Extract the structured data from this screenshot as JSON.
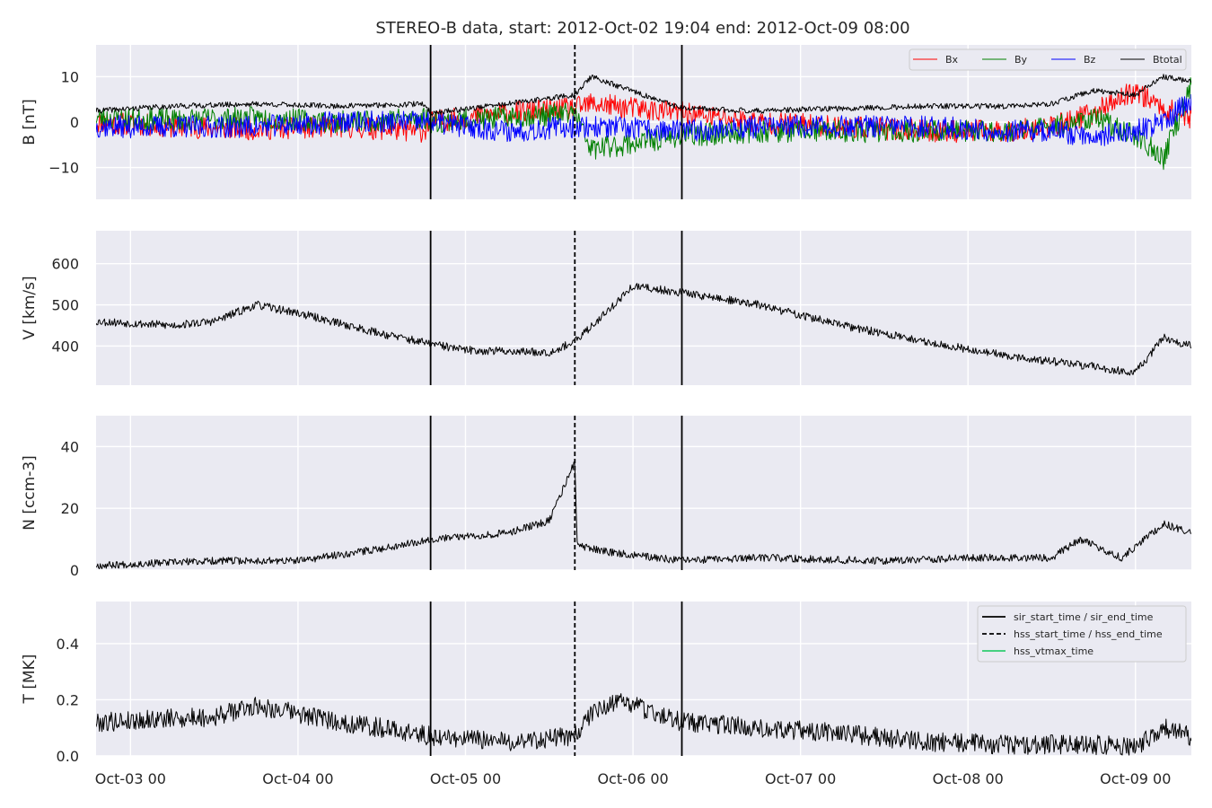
{
  "chart_data": {
    "title": "STEREO-B data, start: 2012-Oct-02 19:04  end: 2012-Oct-09 08:00",
    "type": "line",
    "x_range": [
      "2012-10-02 19:04",
      "2012-10-09 08:00"
    ],
    "x_tick_labels": [
      "Oct-03 00",
      "Oct-04 00",
      "Oct-05 00",
      "Oct-06 00",
      "Oct-07 00",
      "Oct-08 00",
      "Oct-09 00"
    ],
    "x_ticks": [
      "2012-10-03 00:00",
      "2012-10-04 00:00",
      "2012-10-05 00:00",
      "2012-10-06 00:00",
      "2012-10-07 00:00",
      "2012-10-08 00:00",
      "2012-10-09 00:00"
    ],
    "grid": true,
    "background_color": "#eaeaf2",
    "event_lines": [
      {
        "name": "sir_start_time",
        "time": "2012-10-04 19:00",
        "style": "solid",
        "color": "#000000"
      },
      {
        "name": "hss_start_time",
        "time": "2012-10-05 15:40",
        "style": "dashed",
        "color": "#000000"
      },
      {
        "name": "sir_end_time",
        "time": "2012-10-06 07:00",
        "style": "solid",
        "color": "#000000"
      }
    ],
    "panels": [
      {
        "id": "b",
        "ylabel": "B [nT]",
        "ylim": [
          -17,
          17
        ],
        "yticks": [
          -10,
          0,
          10
        ],
        "ytick_labels": [
          "−10",
          "0",
          "10"
        ],
        "legend": "top-right",
        "series": [
          {
            "name": "Bx",
            "color": "#ff0000",
            "times": [
              "2012-10-02 19:04",
              "2012-10-03 06:00",
              "2012-10-03 18:00",
              "2012-10-04 06:00",
              "2012-10-04 18:00",
              "2012-10-04 19:00",
              "2012-10-05 06:00",
              "2012-10-05 15:40",
              "2012-10-05 18:00",
              "2012-10-06 07:00",
              "2012-10-06 18:00",
              "2012-10-07 06:00",
              "2012-10-07 18:00",
              "2012-10-08 06:00",
              "2012-10-08 12:00",
              "2012-10-08 18:00",
              "2012-10-09 00:00",
              "2012-10-09 04:00",
              "2012-10-09 08:00"
            ],
            "values": [
              0,
              -1,
              -1.5,
              -1,
              -2,
              0,
              2,
              3,
              4,
              2,
              0,
              -1,
              -2,
              -2,
              -1,
              2,
              7,
              3,
              1
            ],
            "noise": 2.5
          },
          {
            "name": "By",
            "color": "#008000",
            "times": [
              "2012-10-02 19:04",
              "2012-10-03 06:00",
              "2012-10-03 18:00",
              "2012-10-04 06:00",
              "2012-10-04 18:00",
              "2012-10-04 19:00",
              "2012-10-05 06:00",
              "2012-10-05 15:40",
              "2012-10-05 18:00",
              "2012-10-06 07:00",
              "2012-10-06 18:00",
              "2012-10-07 06:00",
              "2012-10-07 18:00",
              "2012-10-08 06:00",
              "2012-10-08 12:00",
              "2012-10-08 18:00",
              "2012-10-09 00:00",
              "2012-10-09 04:00",
              "2012-10-09 08:00"
            ],
            "values": [
              1,
              0.5,
              1,
              0,
              1,
              0,
              1,
              2,
              -6,
              -3,
              -2,
              -2,
              -2,
              -2,
              -1,
              1,
              -3,
              -8,
              8
            ],
            "noise": 2.5
          },
          {
            "name": "Bz",
            "color": "#0000ff",
            "times": [
              "2012-10-02 19:04",
              "2012-10-03 06:00",
              "2012-10-03 18:00",
              "2012-10-04 06:00",
              "2012-10-04 18:00",
              "2012-10-04 19:00",
              "2012-10-05 06:00",
              "2012-10-05 15:40",
              "2012-10-05 18:00",
              "2012-10-06 07:00",
              "2012-10-06 18:00",
              "2012-10-07 06:00",
              "2012-10-07 18:00",
              "2012-10-08 06:00",
              "2012-10-08 12:00",
              "2012-10-08 18:00",
              "2012-10-09 00:00",
              "2012-10-09 04:00",
              "2012-10-09 08:00"
            ],
            "values": [
              -1,
              -1,
              -1,
              0,
              0,
              0,
              -2,
              -1,
              -1,
              -2,
              -1,
              -1,
              -1,
              -2,
              -2,
              -3,
              -2,
              0,
              5
            ],
            "noise": 2.5
          },
          {
            "name": "Btotal",
            "color": "#000000",
            "times": [
              "2012-10-02 19:04",
              "2012-10-03 06:00",
              "2012-10-03 18:00",
              "2012-10-04 06:00",
              "2012-10-04 18:00",
              "2012-10-04 19:00",
              "2012-10-05 06:00",
              "2012-10-05 15:40",
              "2012-10-05 18:00",
              "2012-10-06 07:00",
              "2012-10-06 18:00",
              "2012-10-07 06:00",
              "2012-10-07 18:00",
              "2012-10-08 06:00",
              "2012-10-08 12:00",
              "2012-10-08 18:00",
              "2012-10-09 00:00",
              "2012-10-09 04:00",
              "2012-10-09 08:00"
            ],
            "values": [
              2.5,
              3.5,
              4,
              3.5,
              4,
              2,
              4,
              6,
              10,
              3,
              2.5,
              3,
              3.5,
              3.5,
              4,
              7,
              6,
              10,
              9
            ],
            "noise": 0.6
          }
        ]
      },
      {
        "id": "v",
        "ylabel": "V [km/s]",
        "ylim": [
          305,
          680
        ],
        "yticks": [
          400,
          500,
          600
        ],
        "ytick_labels": [
          "400",
          "500",
          "600"
        ],
        "series": [
          {
            "name": "V",
            "color": "#000000",
            "times": [
              "2012-10-02 19:04",
              "2012-10-03 06:00",
              "2012-10-03 12:00",
              "2012-10-03 18:00",
              "2012-10-04 00:00",
              "2012-10-04 12:00",
              "2012-10-04 19:00",
              "2012-10-05 00:00",
              "2012-10-05 12:00",
              "2012-10-05 15:40",
              "2012-10-05 20:00",
              "2012-10-06 00:00",
              "2012-10-06 07:00",
              "2012-10-06 18:00",
              "2012-10-07 06:00",
              "2012-10-07 12:00",
              "2012-10-07 18:00",
              "2012-10-08 06:00",
              "2012-10-08 18:00",
              "2012-10-09 00:00",
              "2012-10-09 04:00",
              "2012-10-09 08:00"
            ],
            "values": [
              460,
              450,
              460,
              500,
              480,
              430,
              405,
              390,
              385,
              410,
              480,
              545,
              530,
              500,
              450,
              430,
              410,
              375,
              350,
              335,
              420,
              400
            ],
            "noise": 10
          }
        ]
      },
      {
        "id": "n",
        "ylabel": "N [ccm-3]",
        "ylim": [
          0,
          50
        ],
        "yticks": [
          0,
          20,
          40
        ],
        "ytick_labels": [
          "0",
          "20",
          "40"
        ],
        "series": [
          {
            "name": "N",
            "color": "#000000",
            "times": [
              "2012-10-02 19:04",
              "2012-10-03 12:00",
              "2012-10-04 00:00",
              "2012-10-04 12:00",
              "2012-10-04 19:00",
              "2012-10-05 06:00",
              "2012-10-05 12:00",
              "2012-10-05 15:40",
              "2012-10-05 16:00",
              "2012-10-05 20:00",
              "2012-10-06 07:00",
              "2012-10-06 18:00",
              "2012-10-07 12:00",
              "2012-10-08 00:00",
              "2012-10-08 12:00",
              "2012-10-08 16:00",
              "2012-10-08 22:00",
              "2012-10-09 04:00",
              "2012-10-09 08:00"
            ],
            "values": [
              1.5,
              3,
              3,
              7,
              10,
              12,
              16,
              35,
              8,
              6,
              3,
              4,
              3,
              4,
              4,
              10,
              4,
              15,
              12
            ],
            "noise": 1.2
          }
        ]
      },
      {
        "id": "t",
        "ylabel": "T [MK]",
        "ylim": [
          0,
          0.55
        ],
        "yticks": [
          0.0,
          0.2,
          0.4
        ],
        "ytick_labels": [
          "0.0",
          "0.2",
          "0.4"
        ],
        "legend": "top-right",
        "series": [
          {
            "name": "T",
            "color": "#000000",
            "times": [
              "2012-10-02 19:04",
              "2012-10-03 12:00",
              "2012-10-03 18:00",
              "2012-10-04 06:00",
              "2012-10-04 12:00",
              "2012-10-04 19:00",
              "2012-10-05 06:00",
              "2012-10-05 15:40",
              "2012-10-05 18:00",
              "2012-10-05 22:00",
              "2012-10-06 07:00",
              "2012-10-06 18:00",
              "2012-10-07 06:00",
              "2012-10-07 18:00",
              "2012-10-08 06:00",
              "2012-10-08 18:00",
              "2012-10-09 00:00",
              "2012-10-09 04:00",
              "2012-10-09 08:00"
            ],
            "values": [
              0.12,
              0.14,
              0.18,
              0.12,
              0.1,
              0.07,
              0.05,
              0.07,
              0.15,
              0.2,
              0.12,
              0.1,
              0.08,
              0.05,
              0.04,
              0.04,
              0.03,
              0.1,
              0.07
            ],
            "noise": 0.035
          }
        ]
      }
    ],
    "legend_b": [
      {
        "label": "Bx",
        "color": "#ff0000"
      },
      {
        "label": "By",
        "color": "#008000"
      },
      {
        "label": "Bz",
        "color": "#0000ff"
      },
      {
        "label": "Btotal",
        "color": "#000000"
      }
    ],
    "legend_t": [
      {
        "label": "sir_start_time / sir_end_time",
        "color": "#000000",
        "style": "solid"
      },
      {
        "label": "hss_start_time / hss_end_time",
        "color": "#000000",
        "style": "dashed"
      },
      {
        "label": "hss_vtmax_time",
        "color": "#2ecc71",
        "style": "solid"
      }
    ]
  }
}
